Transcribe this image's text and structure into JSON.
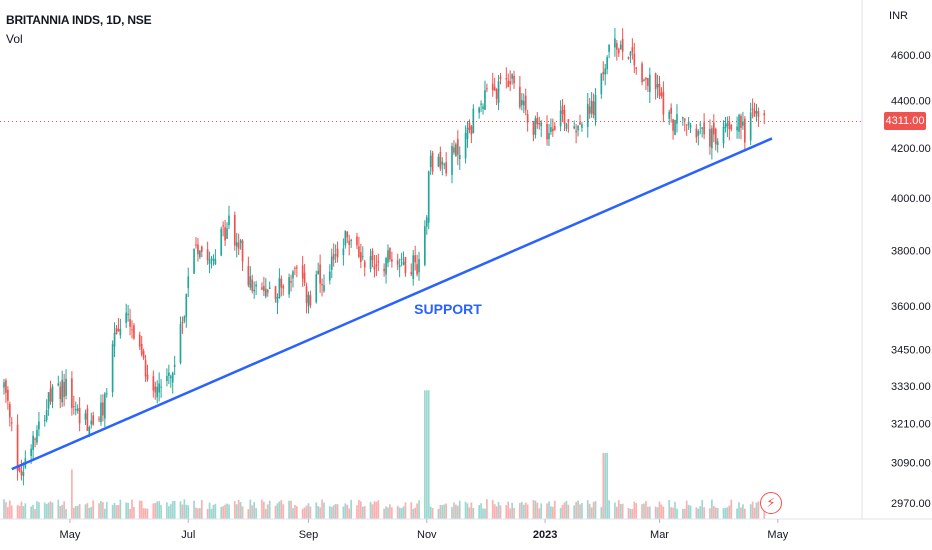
{
  "header": {
    "symbol_title": "BRITANNIA INDS, 1D, NSE",
    "volume_label": "Vol",
    "currency": "INR"
  },
  "price_badge": {
    "value": "4311.00",
    "color": "#ef5350"
  },
  "colors": {
    "up": "#26a69a",
    "down": "#ef5350",
    "support_line": "#2962ff"
  },
  "annotation": {
    "label": "SUPPORT"
  },
  "icons": {
    "flash": "lightning-icon"
  },
  "chart_data": {
    "type": "candlestick",
    "title": "BRITANNIA INDS, 1D, NSE",
    "y_scale": "log",
    "ylim": [
      2900,
      4800
    ],
    "y_ticks": [
      4600,
      4400,
      4200,
      4000,
      3800,
      3600,
      3450,
      3330,
      3210,
      3090,
      2970
    ],
    "y_tick_labels": [
      "4600.00",
      "4400.00",
      "4200.00",
      "4000.00",
      "3800.00",
      "3600.00",
      "3450.00",
      "3330.00",
      "3210.00",
      "3090.00",
      "2970.00"
    ],
    "x_tick_labels": [
      {
        "label": "May",
        "date": "2022-05-01",
        "bold": false
      },
      {
        "label": "Jul",
        "date": "2022-07-01",
        "bold": false
      },
      {
        "label": "Sep",
        "date": "2022-09-01",
        "bold": false
      },
      {
        "label": "Nov",
        "date": "2022-11-01",
        "bold": false
      },
      {
        "label": "2023",
        "date": "2023-01-01",
        "bold": true
      },
      {
        "label": "Mar",
        "date": "2023-03-01",
        "bold": false
      },
      {
        "label": "May",
        "date": "2023-05-01",
        "bold": false
      }
    ],
    "close_path": [
      [
        "2022-03-28",
        3330
      ],
      [
        "2022-04-04",
        3080
      ],
      [
        "2022-04-06",
        3060
      ],
      [
        "2022-04-12",
        3180
      ],
      [
        "2022-04-20",
        3280
      ],
      [
        "2022-04-28",
        3330
      ],
      [
        "2022-05-04",
        3250
      ],
      [
        "2022-05-12",
        3200
      ],
      [
        "2022-05-18",
        3250
      ],
      [
        "2022-05-24",
        3500
      ],
      [
        "2022-05-30",
        3560
      ],
      [
        "2022-06-06",
        3430
      ],
      [
        "2022-06-12",
        3330
      ],
      [
        "2022-06-18",
        3350
      ],
      [
        "2022-06-25",
        3400
      ],
      [
        "2022-06-30",
        3650
      ],
      [
        "2022-07-04",
        3830
      ],
      [
        "2022-07-14",
        3790
      ],
      [
        "2022-07-22",
        3900
      ],
      [
        "2022-07-28",
        3800
      ],
      [
        "2022-08-04",
        3640
      ],
      [
        "2022-08-12",
        3660
      ],
      [
        "2022-08-18",
        3670
      ],
      [
        "2022-08-25",
        3720
      ],
      [
        "2022-09-02",
        3610
      ],
      [
        "2022-09-06",
        3700
      ],
      [
        "2022-09-10",
        3620
      ],
      [
        "2022-09-14",
        3780
      ],
      [
        "2022-09-20",
        3850
      ],
      [
        "2022-09-28",
        3780
      ],
      [
        "2022-10-06",
        3750
      ],
      [
        "2022-10-14",
        3780
      ],
      [
        "2022-10-22",
        3750
      ],
      [
        "2022-10-29",
        3750
      ],
      [
        "2022-11-01",
        3960
      ],
      [
        "2022-11-02",
        4150
      ],
      [
        "2022-11-10",
        4130
      ],
      [
        "2022-11-18",
        4200
      ],
      [
        "2022-11-24",
        4300
      ],
      [
        "2022-11-28",
        4400
      ],
      [
        "2022-12-06",
        4420
      ],
      [
        "2022-12-14",
        4500
      ],
      [
        "2022-12-20",
        4400
      ],
      [
        "2022-12-26",
        4300
      ],
      [
        "2023-01-01",
        4250
      ],
      [
        "2023-01-08",
        4350
      ],
      [
        "2023-01-16",
        4300
      ],
      [
        "2023-01-24",
        4350
      ],
      [
        "2023-01-28",
        4400
      ],
      [
        "2023-02-02",
        4600
      ],
      [
        "2023-02-08",
        4650
      ],
      [
        "2023-02-14",
        4620
      ],
      [
        "2023-02-20",
        4500
      ],
      [
        "2023-02-28",
        4450
      ],
      [
        "2023-03-06",
        4320
      ],
      [
        "2023-03-14",
        4300
      ],
      [
        "2023-03-20",
        4280
      ],
      [
        "2023-03-26",
        4240
      ],
      [
        "2023-04-01",
        4230
      ],
      [
        "2023-04-05",
        4310
      ],
      [
        "2023-04-10",
        4320
      ],
      [
        "2023-04-14",
        4270
      ],
      [
        "2023-04-18",
        4350
      ],
      [
        "2023-04-24",
        4311
      ]
    ],
    "volume_spikes": [
      {
        "date": "2022-05-01",
        "relative": 0.3
      },
      {
        "date": "2022-11-01",
        "relative": 0.78
      },
      {
        "date": "2023-02-01",
        "relative": 0.4
      }
    ],
    "last_close": 4311.0,
    "annotations": [
      {
        "type": "trendline",
        "label": "SUPPORT",
        "from": [
          "2022-04-01",
          3070
        ],
        "to": [
          "2023-04-28",
          4240
        ]
      }
    ]
  }
}
